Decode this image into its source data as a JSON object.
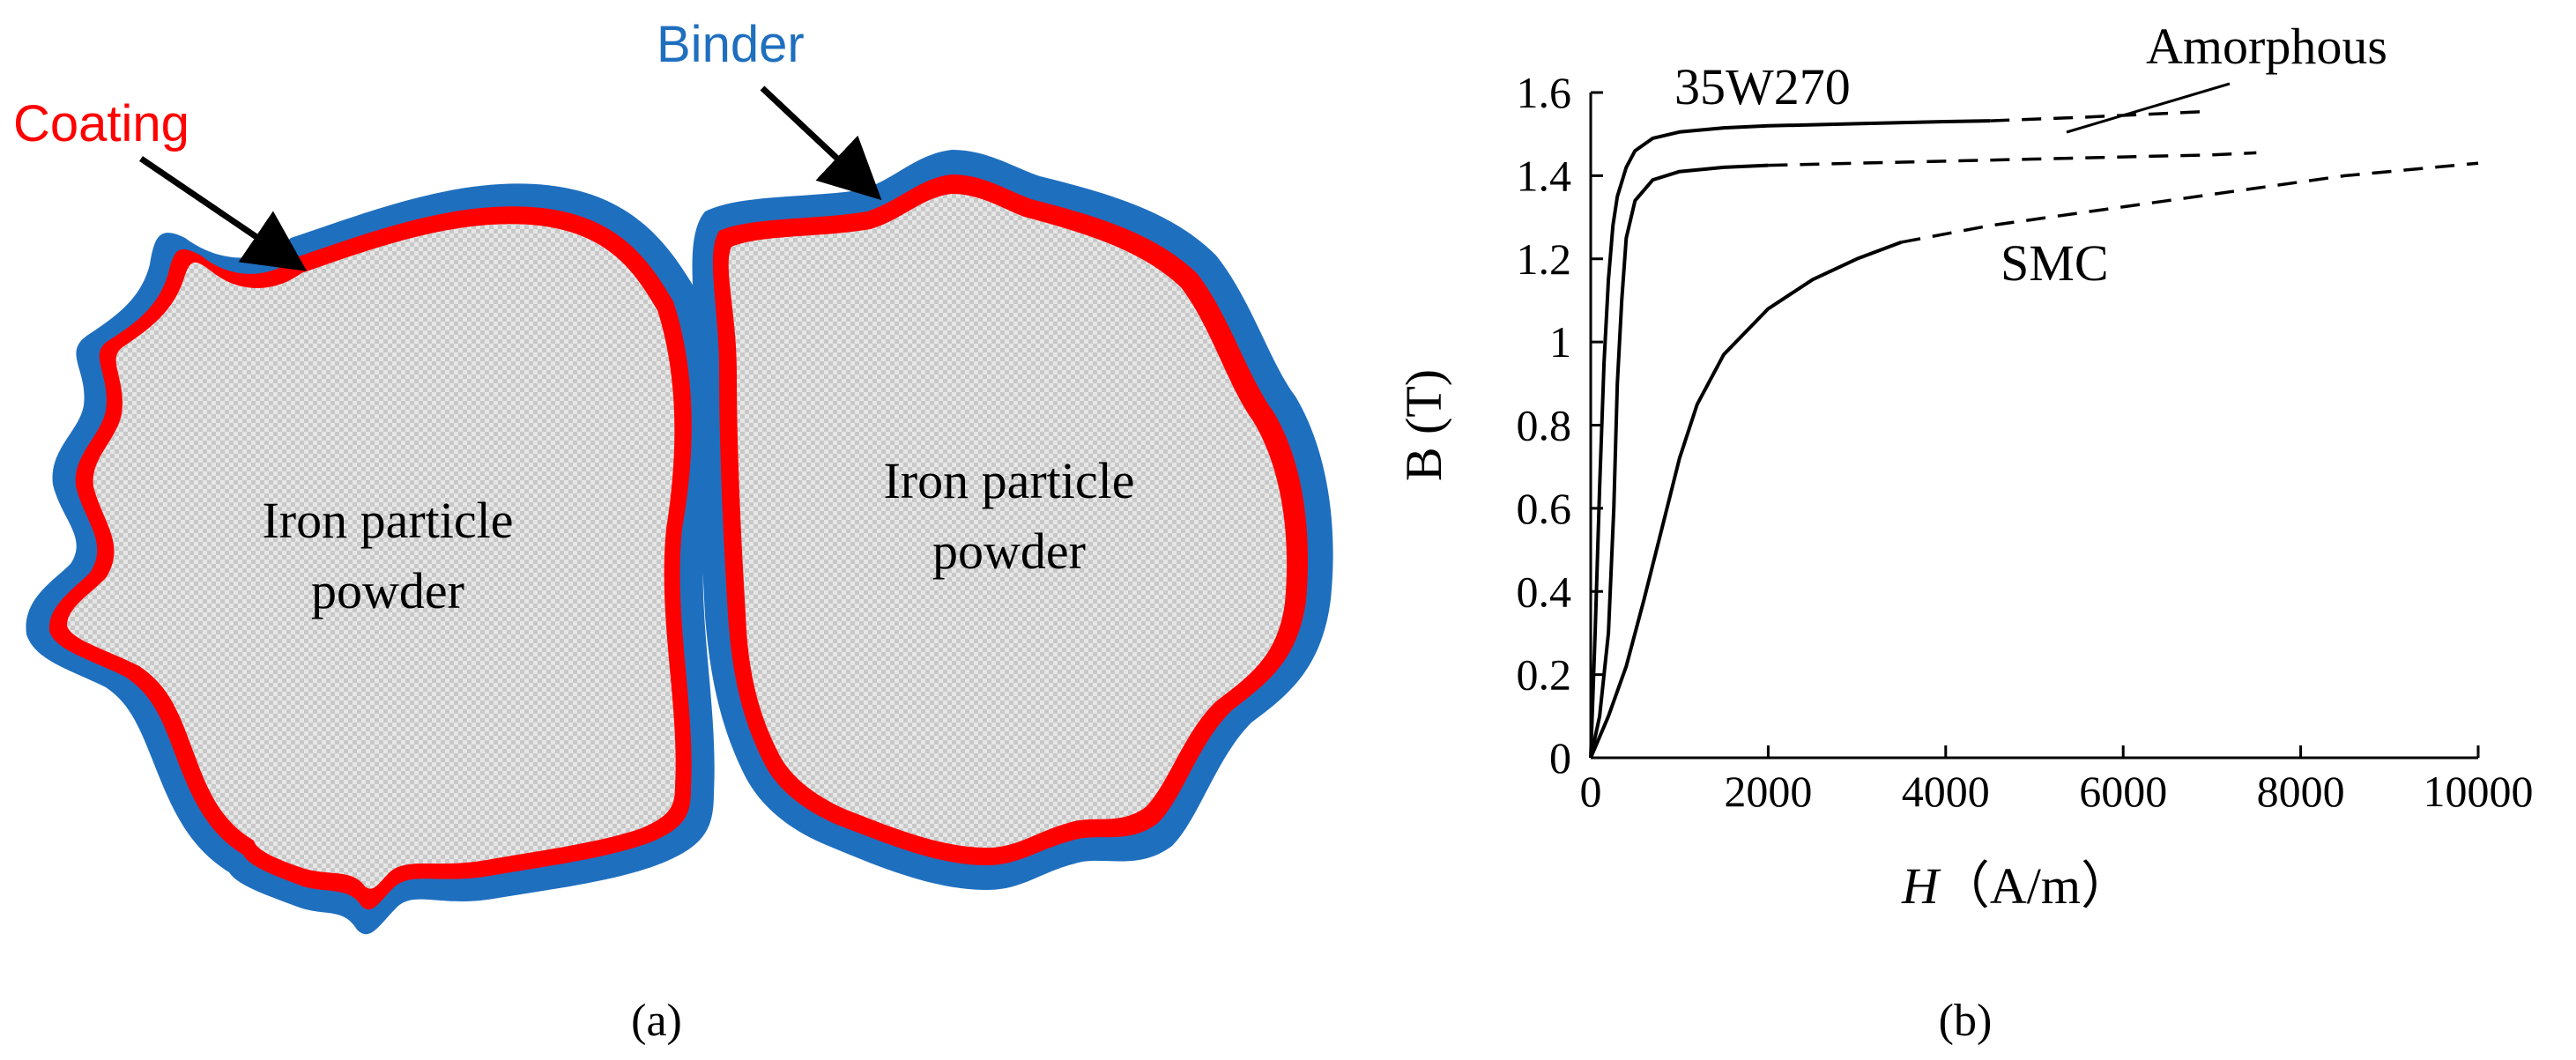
{
  "panel_a": {
    "label": "(a)",
    "annotations": {
      "coating": "Coating",
      "binder": "Binder"
    },
    "particles": [
      {
        "line1": "Iron particle",
        "line2": "powder"
      },
      {
        "line1": "Iron particle",
        "line2": "powder"
      }
    ],
    "colors": {
      "coating": "#ff0000",
      "binder": "#1f6fbf",
      "particle_fill": "#d9d9d9",
      "arrow": "#000000"
    }
  },
  "panel_b": {
    "label": "(b)",
    "chart_data": {
      "type": "line",
      "xlabel_italic": "H",
      "xlabel_rest": "（A/m）",
      "ylabel": "B (T)",
      "xlim": [
        0,
        10000
      ],
      "ylim": [
        0,
        1.6
      ],
      "x_ticks": [
        "0",
        "2000",
        "4000",
        "6000",
        "8000",
        "10000"
      ],
      "y_ticks": [
        "0",
        "0.2",
        "0.4",
        "0.6",
        "0.8",
        "1",
        "1.2",
        "1.4",
        "1.6"
      ],
      "x_tick_values": [
        0,
        2000,
        4000,
        6000,
        8000,
        10000
      ],
      "y_tick_values": [
        0,
        0.2,
        0.4,
        0.6,
        0.8,
        1.0,
        1.2,
        1.4,
        1.6
      ],
      "grid": false,
      "series": [
        {
          "name": "35W270",
          "solid": [
            [
              0,
              0
            ],
            [
              50,
              0.3
            ],
            [
              100,
              0.65
            ],
            [
              150,
              0.95
            ],
            [
              200,
              1.15
            ],
            [
              250,
              1.28
            ],
            [
              300,
              1.35
            ],
            [
              400,
              1.42
            ],
            [
              500,
              1.46
            ],
            [
              700,
              1.49
            ],
            [
              1000,
              1.505
            ],
            [
              1500,
              1.515
            ],
            [
              2000,
              1.52
            ],
            [
              3000,
              1.525
            ],
            [
              4000,
              1.53
            ],
            [
              4500,
              1.532
            ]
          ],
          "dashed": [
            [
              4500,
              1.532
            ],
            [
              5500,
              1.54
            ],
            [
              6500,
              1.55
            ],
            [
              7000,
              1.555
            ]
          ]
        },
        {
          "name": "Amorphous",
          "solid": [
            [
              0,
              0
            ],
            [
              100,
              0.1
            ],
            [
              200,
              0.3
            ],
            [
              260,
              0.6
            ],
            [
              300,
              0.9
            ],
            [
              350,
              1.1
            ],
            [
              400,
              1.25
            ],
            [
              500,
              1.34
            ],
            [
              700,
              1.39
            ],
            [
              1000,
              1.41
            ],
            [
              1500,
              1.42
            ],
            [
              2000,
              1.425
            ]
          ],
          "dashed": [
            [
              2000,
              1.425
            ],
            [
              3000,
              1.43
            ],
            [
              4000,
              1.435
            ],
            [
              5000,
              1.44
            ],
            [
              6000,
              1.445
            ],
            [
              7000,
              1.45
            ],
            [
              7500,
              1.455
            ]
          ]
        },
        {
          "name": "SMC",
          "solid": [
            [
              0,
              0
            ],
            [
              200,
              0.1
            ],
            [
              400,
              0.22
            ],
            [
              600,
              0.38
            ],
            [
              800,
              0.55
            ],
            [
              1000,
              0.72
            ],
            [
              1200,
              0.85
            ],
            [
              1500,
              0.97
            ],
            [
              2000,
              1.08
            ],
            [
              2500,
              1.15
            ],
            [
              3000,
              1.2
            ],
            [
              3500,
              1.24
            ]
          ],
          "dashed": [
            [
              3500,
              1.24
            ],
            [
              4500,
              1.28
            ],
            [
              5500,
              1.31
            ],
            [
              6500,
              1.34
            ],
            [
              7500,
              1.37
            ],
            [
              8500,
              1.4
            ],
            [
              10000,
              1.43
            ]
          ]
        }
      ],
      "series_labels": {
        "s35w270": "35W270",
        "amorphous": "Amorphous",
        "smc": "SMC"
      }
    }
  }
}
